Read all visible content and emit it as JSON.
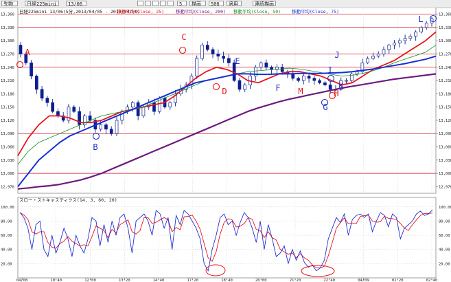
{
  "toolbar": {
    "symbol_select": "先物",
    "contract_select": "日経225mini",
    "month_select": "13/06",
    "period_value": "5",
    "count_value": "500",
    "apply_label": "適用",
    "redraw_label": "描画",
    "display_label": "連続描画"
  },
  "main_chart": {
    "info_text": "日経225mini 13/06(5分,2013/04/05 - 2013/04/09)",
    "ma_labels": [
      "移動平均(Close, 25)",
      "移動平均(Close, 200)",
      "移動平均(Close, 50)",
      "移動平均(Close, 75)"
    ],
    "price_ticks": [
      "13,360",
      "13,330",
      "13,300",
      "13,270",
      "13,240",
      "13,210",
      "13,180",
      "13,150",
      "13,120",
      "13,090",
      "13,060",
      "13,030",
      "13,000",
      "12,970"
    ],
    "time_ticks": [
      "04/08",
      "10:40",
      "12:00",
      "13:20",
      "14:40",
      "17:20",
      "18:40",
      "20:00",
      "21:20",
      "22:40",
      "04/09",
      "01:20",
      "02:40"
    ],
    "point_labels": [
      "A",
      "B",
      "C",
      "D",
      "E",
      "F",
      "G",
      "H",
      "I",
      "J",
      "K",
      "L",
      "M"
    ],
    "colors": {
      "candle": "#0b1f8f",
      "ma25": "#e8141c",
      "ma50": "#118f1e",
      "ma75": "#1531d6",
      "ma200": "#6d1a80",
      "annotation_red": "#e8141c",
      "annotation_blue": "#2230c8"
    }
  },
  "oscillator": {
    "title": "スロー・ストキャスティクス(14, 3, 60, 20)",
    "ticks": [
      "100.00",
      "80.00",
      "60.00",
      "40.00",
      "20.00"
    ],
    "colors": {
      "k_line": "#2230d0",
      "d_line": "#e8141c"
    }
  },
  "chart_data": {
    "type": "line",
    "title": "日経225mini 13/06(5分,2013/04/05 - 2013/04/09)",
    "xlabel": "",
    "ylabel": "",
    "x_tick_labels": [
      "04/08",
      "10:40",
      "12:00",
      "13:20",
      "14:40",
      "17:20",
      "18:40",
      "20:00",
      "21:20",
      "22:40",
      "04/09",
      "01:20",
      "02:40"
    ],
    "ylim": [
      12955,
      13375
    ],
    "horizontal_lines": [
      13360,
      13330,
      13270,
      13240,
      13090,
      13000
    ],
    "close_series": [
      13270,
      13250,
      13220,
      13190,
      13170,
      13160,
      13140,
      13130,
      13120,
      13150,
      13140,
      13110,
      13130,
      13120,
      13100,
      13110,
      13100,
      13090,
      13120,
      13140,
      13150,
      13160,
      13130,
      13150,
      13160,
      13140,
      13170,
      13150,
      13160,
      13180,
      13190,
      13200,
      13220,
      13260,
      13290,
      13280,
      13270,
      13265,
      13260,
      13250,
      13210,
      13190,
      13200,
      13220,
      13240,
      13250,
      13240,
      13235,
      13240,
      13230,
      13225,
      13215,
      13210,
      13220,
      13215,
      13210,
      13205,
      13200,
      13190,
      13190,
      13210,
      13210,
      13225,
      13230,
      13250,
      13260,
      13265,
      13270,
      13280,
      13290,
      13295,
      13300,
      13305,
      13310,
      13320,
      13330,
      13340,
      13350
    ],
    "series": [
      {
        "name": "移動平均(Close, 25)",
        "values": [
          13040,
          13080,
          13110,
          13130,
          13130,
          13125,
          13115,
          13115,
          13120,
          13130,
          13140,
          13145,
          13150,
          13155,
          13160,
          13175,
          13195,
          13215,
          13230,
          13240,
          13235,
          13225,
          13210,
          13205,
          13215,
          13225,
          13230,
          13230,
          13225,
          13220,
          13210,
          13200,
          13205,
          13220,
          13235,
          13245,
          13255,
          13270,
          13285,
          13300,
          13320
        ]
      },
      {
        "name": "移動平均(Close, 50)",
        "values": [
          13020,
          13050,
          13070,
          13080,
          13090,
          13100,
          13110,
          13120,
          13130,
          13135,
          13140,
          13145,
          13150,
          13160,
          13170,
          13180,
          13190,
          13200,
          13210,
          13215,
          13220,
          13225,
          13230,
          13232,
          13234,
          13236,
          13238,
          13236,
          13232,
          13228,
          13224,
          13220,
          13222,
          13226,
          13232,
          13240,
          13250,
          13258,
          13266,
          13274,
          13290
        ]
      },
      {
        "name": "移動平均(Close, 75)",
        "values": [
          12970,
          13000,
          13030,
          13050,
          13070,
          13085,
          13095,
          13105,
          13115,
          13125,
          13135,
          13145,
          13155,
          13165,
          13175,
          13185,
          13195,
          13205,
          13210,
          13215,
          13220,
          13225,
          13225,
          13224,
          13224,
          13225,
          13225,
          13226,
          13226,
          13226,
          13227,
          13228,
          13230,
          13233,
          13236,
          13240,
          13244,
          13248,
          13253,
          13258,
          13265
        ]
      },
      {
        "name": "移動平均(Close, 200)",
        "values": [
          12965,
          12967,
          12970,
          12972,
          12975,
          12980,
          12985,
          12992,
          13000,
          13010,
          13020,
          13030,
          13040,
          13050,
          13060,
          13070,
          13080,
          13090,
          13100,
          13110,
          13120,
          13130,
          13140,
          13148,
          13155,
          13162,
          13168,
          13173,
          13178,
          13183,
          13188,
          13193,
          13197,
          13201,
          13205,
          13209,
          13213,
          13216,
          13219,
          13222,
          13225
        ]
      }
    ],
    "stochastic": {
      "title": "スロー・ストキャスティクス(14, 3, 60, 20)",
      "ylim": [
        0,
        100
      ],
      "k": [
        92,
        85,
        70,
        40,
        75,
        80,
        40,
        30,
        60,
        35,
        50,
        70,
        55,
        30,
        60,
        45,
        35,
        55,
        85,
        80,
        45,
        75,
        50,
        80,
        60,
        85,
        90,
        70,
        35,
        80,
        85,
        90,
        80,
        60,
        95,
        90,
        70,
        85,
        40,
        88,
        75,
        95,
        90,
        80,
        70,
        55,
        20,
        10,
        40,
        60,
        85,
        90,
        75,
        80,
        60,
        78,
        92,
        85,
        70,
        50,
        80,
        40,
        75,
        55,
        30,
        35,
        45,
        20,
        40,
        25,
        38,
        22,
        15,
        18,
        10,
        14,
        25,
        55,
        70,
        85,
        78,
        90,
        60,
        82,
        88,
        90,
        85,
        90,
        65,
        80,
        92,
        88,
        72,
        90,
        85,
        55,
        70,
        75,
        80,
        90,
        94,
        88,
        90,
        96
      ]
    }
  }
}
